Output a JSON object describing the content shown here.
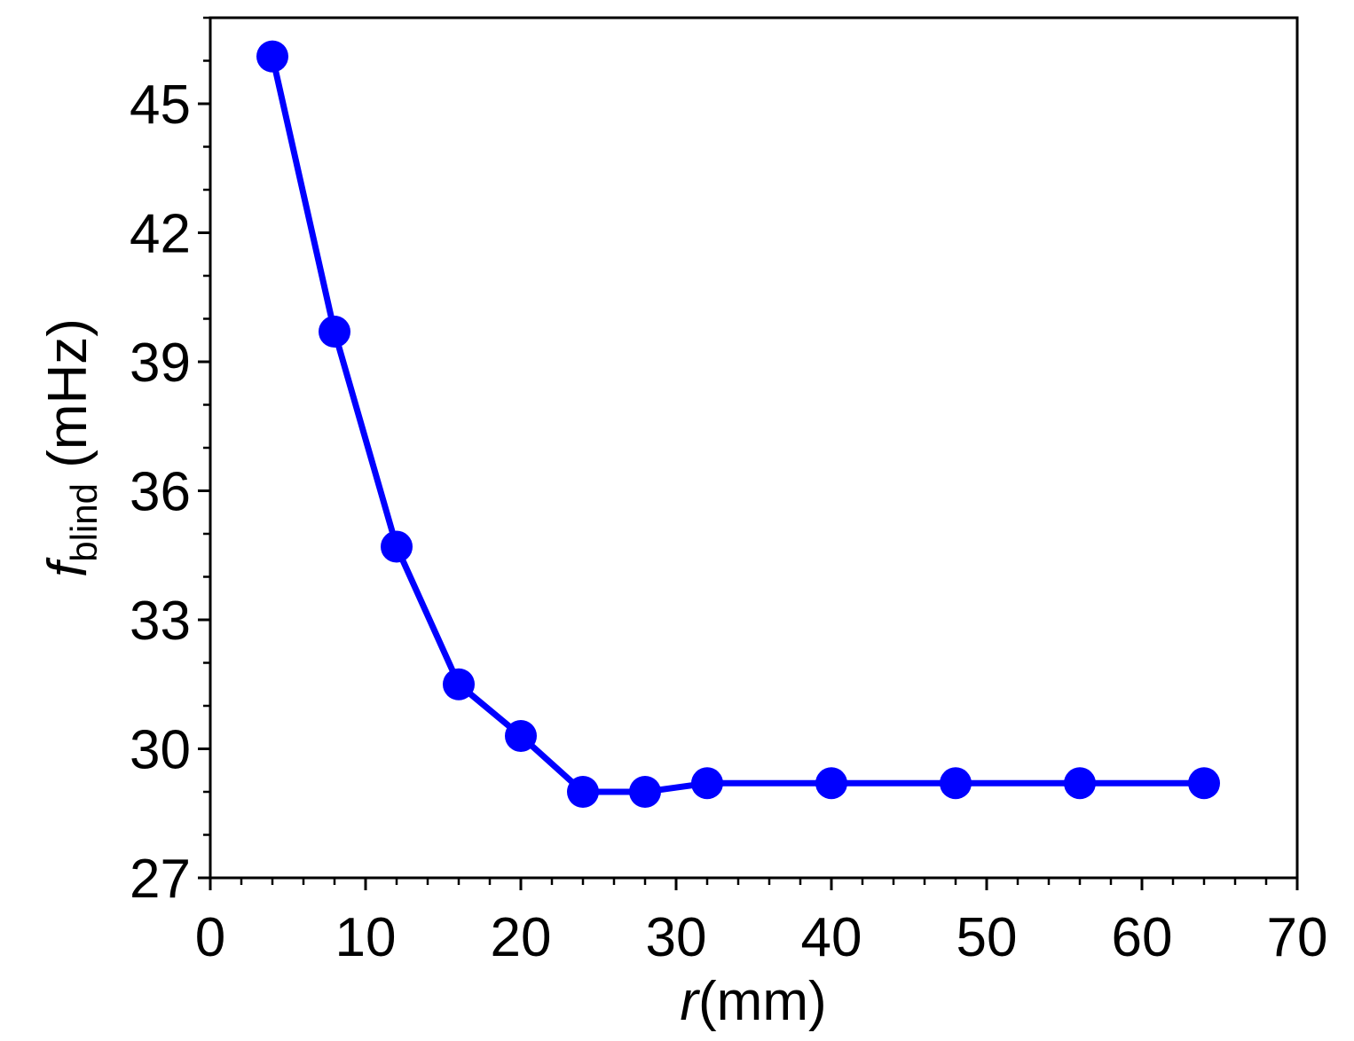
{
  "chart_data": {
    "type": "line",
    "xlabel": {
      "var": "r",
      "unit": "(mm)"
    },
    "ylabel": {
      "var": "f",
      "sub": "blind",
      "unit": " (mHz)"
    },
    "xlim": [
      0,
      70
    ],
    "ylim": [
      27,
      47
    ],
    "xticks": [
      0,
      10,
      20,
      30,
      40,
      50,
      60,
      70
    ],
    "yticks": [
      27,
      30,
      33,
      36,
      39,
      42,
      45
    ],
    "x_minor_step": 2,
    "y_minor_step": 1,
    "grid": false,
    "color": "#0000FF",
    "series": [
      {
        "x": [
          4,
          8,
          12,
          16,
          20,
          24,
          28,
          32,
          40,
          48,
          56,
          64
        ],
        "y": [
          46.1,
          39.7,
          34.7,
          31.5,
          30.3,
          29.0,
          29.0,
          29.2,
          29.2,
          29.2,
          29.2,
          29.2
        ]
      }
    ]
  }
}
